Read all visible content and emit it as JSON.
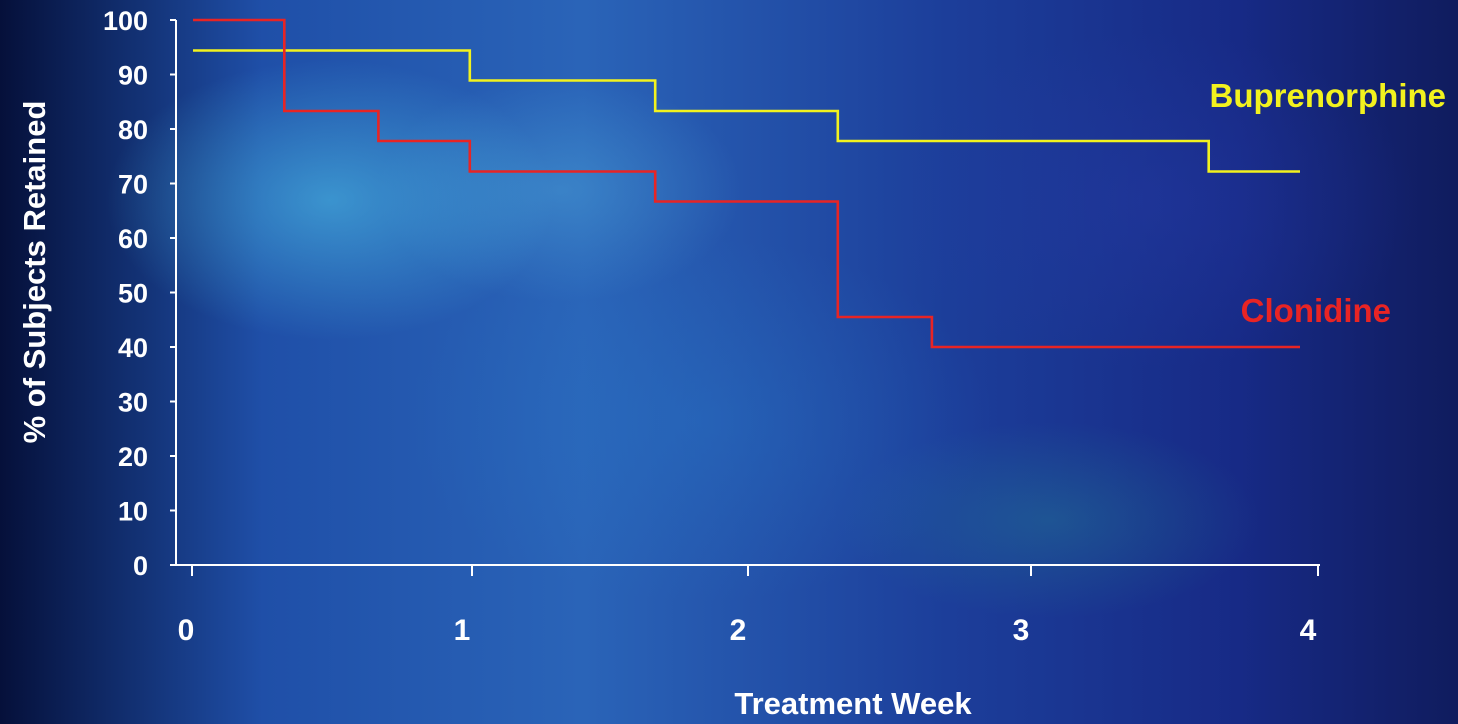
{
  "chart_data": {
    "type": "line",
    "step": true,
    "title": "",
    "xlabel": "Treatment Week",
    "ylabel": "% of Subjects Retained",
    "xlim": [
      0,
      4
    ],
    "ylim": [
      0,
      100
    ],
    "x_ticks": [
      "0",
      "1",
      "2",
      "3",
      "4"
    ],
    "y_ticks": [
      "0",
      "10",
      "20",
      "30",
      "40",
      "50",
      "60",
      "70",
      "80",
      "90",
      "100"
    ],
    "grid": false,
    "legend": "inline labels at right",
    "series": [
      {
        "name": "Buprenorphine",
        "color": "#f2f21e",
        "x": [
          0,
          0.33,
          0.33,
          1.0,
          1.0,
          1.67,
          1.67,
          2.33,
          2.33,
          3.67,
          3.67,
          4.0
        ],
        "y": [
          94.4,
          94.4,
          94.4,
          94.4,
          88.9,
          88.9,
          83.3,
          83.3,
          77.8,
          77.8,
          72.2,
          72.2
        ]
      },
      {
        "name": "Clonidine",
        "color": "#e82424",
        "x": [
          0,
          0.33,
          0.33,
          0.67,
          0.67,
          1.0,
          1.0,
          1.67,
          1.67,
          2.33,
          2.33,
          2.67,
          2.67,
          4.0
        ],
        "y": [
          100,
          100,
          83.3,
          83.3,
          77.8,
          77.8,
          72.2,
          72.2,
          66.7,
          66.7,
          45.5,
          45.5,
          40,
          40
        ]
      }
    ]
  }
}
